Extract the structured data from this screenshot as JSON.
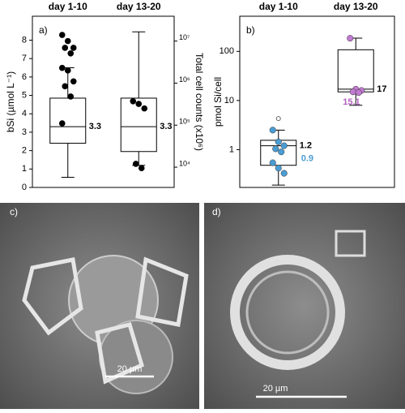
{
  "chart_data": [
    {
      "type": "box",
      "panel_label": "a)",
      "categories": [
        "day 1-10",
        "day 13-20"
      ],
      "ylabel": "bSi (µmol L⁻¹)",
      "ylim": [
        0,
        9.3
      ],
      "yticks": [
        0,
        1,
        2,
        3,
        4,
        5,
        6,
        7,
        8
      ],
      "y2label": "Total cell counts (x10⁶)",
      "y2log": true,
      "y2lim": [
        3300,
        39000000
      ],
      "y2ticks": [
        {
          "value": 10000,
          "label": "10⁴"
        },
        {
          "value": 100000,
          "label": "10⁵"
        },
        {
          "value": 1000000,
          "label": "10⁶"
        },
        {
          "value": 10000000,
          "label": "10⁷"
        }
      ],
      "boxes": [
        {
          "whislo": 0.55,
          "q1": 2.4,
          "med": 3.3,
          "q3": 4.85,
          "whishi": 6.5
        },
        {
          "whislo": 1.2,
          "q1": 1.95,
          "med": 3.3,
          "q3": 4.85,
          "whishi": 8.45
        }
      ],
      "points": {
        "axis": "y2",
        "colors": [
          "#000000",
          "#000000"
        ],
        "values": [
          [
            14000000,
            10000000,
            6900000,
            6900000,
            5100000,
            2300000,
            2000000,
            1100000,
            840000,
            480000,
            110000
          ],
          [
            370000,
            320000,
            250000,
            12000,
            9500
          ]
        ]
      }
    },
    {
      "type": "box",
      "panel_label": "b)",
      "categories": [
        "day 1-10",
        "day 13-20"
      ],
      "ylabel": "pmol Si/cell",
      "ylog": true,
      "ylim": [
        0.17,
        520
      ],
      "yticks": [
        1,
        10,
        100
      ],
      "boxes": [
        {
          "whislo": 0.19,
          "q1": 0.48,
          "med": 1.2,
          "q3": 1.55,
          "whishi": 2.5
        },
        {
          "whislo": 8,
          "q1": 15,
          "med": 17,
          "q3": 108,
          "whishi": 186
        }
      ],
      "means": [
        0.9,
        15.1
      ],
      "mean_colors": [
        "#4b9cd3",
        "#b25fbf"
      ],
      "outliers": [
        [
          4.3
        ],
        []
      ],
      "points": {
        "axis": "y",
        "colors": [
          "#4b9cd3",
          "#c07ad0"
        ],
        "values": [
          [
            2.5,
            1.44,
            1.2,
            1.04,
            0.9,
            0.54,
            0.42,
            0.33
          ],
          [
            185,
            17,
            16,
            15,
            14.5
          ]
        ]
      }
    }
  ],
  "images": [
    {
      "label": "c)",
      "scale_bar": "20 µm"
    },
    {
      "label": "d)",
      "scale_bar": "20 µm"
    }
  ]
}
